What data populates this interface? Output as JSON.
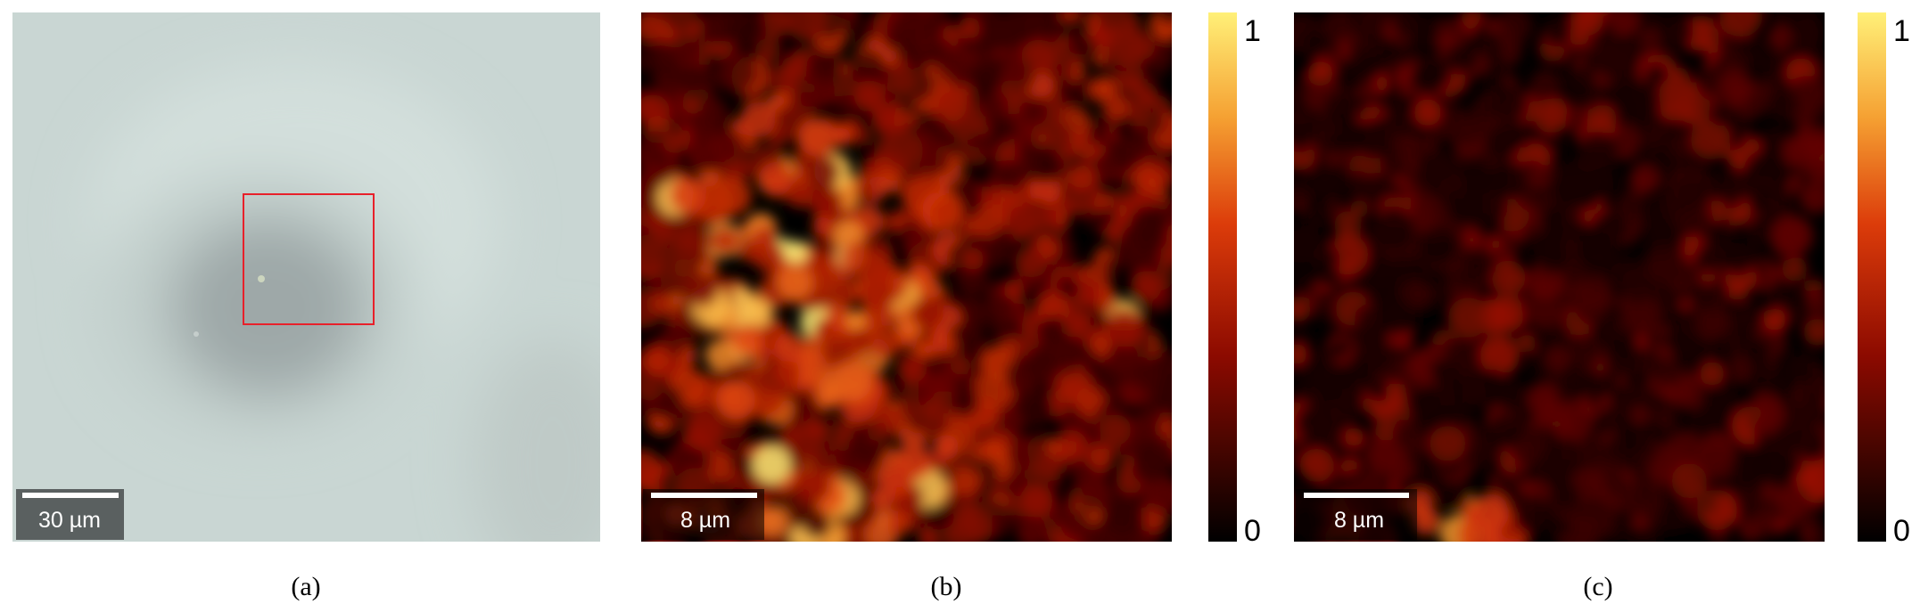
{
  "panels": [
    {
      "caption": "(a)",
      "scale_bar": "30 µm"
    },
    {
      "caption": "(b)",
      "scale_bar": "8 µm",
      "colorbar": {
        "max": 1,
        "min": 0
      }
    },
    {
      "caption": "(c)",
      "scale_bar": "8 µm",
      "colorbar": {
        "max": 1,
        "min": 0
      }
    }
  ]
}
